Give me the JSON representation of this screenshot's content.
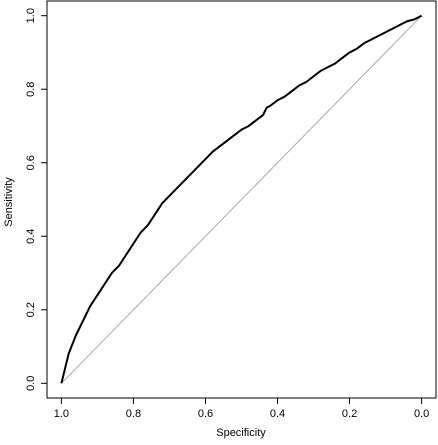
{
  "chart_data": {
    "type": "line",
    "title": "",
    "xlabel": "Specificity",
    "ylabel": "Sensitivity",
    "x_reversed": true,
    "xlim": [
      1.04,
      -0.04
    ],
    "ylim": [
      -0.04,
      1.04
    ],
    "grid": false,
    "legend": "none",
    "x_ticks": [
      1.0,
      0.8,
      0.6,
      0.4,
      0.2,
      0.0
    ],
    "x_tick_labels": [
      "1.0",
      "0.8",
      "0.6",
      "0.4",
      "0.2",
      "0.0"
    ],
    "y_ticks": [
      0.0,
      0.2,
      0.4,
      0.6,
      0.8,
      1.0
    ],
    "y_tick_labels": [
      "0.0",
      "0.2",
      "0.4",
      "0.6",
      "0.8",
      "1.0"
    ],
    "reference_line": {
      "x": [
        1.0,
        0.0
      ],
      "y": [
        0.0,
        1.0
      ],
      "color": "#aaaaaa"
    },
    "series": [
      {
        "color": "#000000",
        "x": [
          1.0,
          0.99,
          0.98,
          0.96,
          0.94,
          0.92,
          0.9,
          0.88,
          0.86,
          0.85,
          0.84,
          0.82,
          0.8,
          0.78,
          0.76,
          0.74,
          0.72,
          0.7,
          0.68,
          0.66,
          0.64,
          0.62,
          0.6,
          0.58,
          0.56,
          0.54,
          0.52,
          0.5,
          0.48,
          0.46,
          0.44,
          0.43,
          0.42,
          0.4,
          0.38,
          0.36,
          0.34,
          0.32,
          0.3,
          0.28,
          0.26,
          0.24,
          0.22,
          0.2,
          0.18,
          0.16,
          0.14,
          0.12,
          0.1,
          0.08,
          0.06,
          0.04,
          0.02,
          0.0
        ],
        "y": [
          0.0,
          0.04,
          0.08,
          0.13,
          0.17,
          0.21,
          0.24,
          0.27,
          0.3,
          0.31,
          0.32,
          0.35,
          0.38,
          0.41,
          0.43,
          0.46,
          0.49,
          0.51,
          0.53,
          0.55,
          0.57,
          0.59,
          0.61,
          0.63,
          0.645,
          0.66,
          0.675,
          0.69,
          0.7,
          0.715,
          0.73,
          0.75,
          0.755,
          0.77,
          0.78,
          0.795,
          0.81,
          0.82,
          0.835,
          0.85,
          0.86,
          0.87,
          0.885,
          0.9,
          0.91,
          0.925,
          0.935,
          0.945,
          0.955,
          0.965,
          0.975,
          0.985,
          0.99,
          1.0
        ]
      }
    ]
  }
}
